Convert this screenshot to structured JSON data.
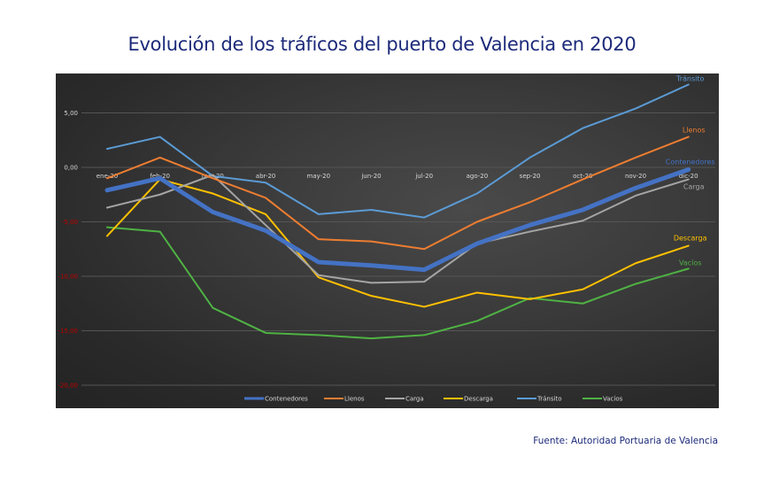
{
  "chart_data": {
    "type": "line",
    "title": "Evolución de los tráficos del puerto de Valencia en 2020",
    "source": "Fuente: Autoridad Portuaria de Valencia",
    "xlabel": "",
    "ylabel": "",
    "categories": [
      "ene-20",
      "feb-20",
      "mar-20",
      "abr-20",
      "may-20",
      "jun-20",
      "jul-20",
      "ago-20",
      "sep-20",
      "oct-20",
      "nov-20",
      "dic-20"
    ],
    "ylim": [
      -22,
      9
    ],
    "yticks": [
      {
        "value": 5,
        "label": "5,00"
      },
      {
        "value": 0,
        "label": "0,00"
      },
      {
        "value": -5,
        "label": "-5,00"
      },
      {
        "value": -10,
        "label": "-10,00"
      },
      {
        "value": -15,
        "label": "-15,00"
      },
      {
        "value": -20,
        "label": "-20,00"
      }
    ],
    "grid": true,
    "legend_position": "bottom",
    "positive_tick_color": "#d9d9d9",
    "negative_tick_color": "#c00000",
    "series": [
      {
        "name": "Contenedores",
        "color": "#4472c4",
        "width": 5,
        "end_label": "Contenedores",
        "values": [
          -2.1,
          -1.0,
          -4.1,
          -5.8,
          -8.7,
          -9.0,
          -9.4,
          -7.0,
          -5.3,
          -3.9,
          -1.9,
          -0.2
        ]
      },
      {
        "name": "Llenos",
        "color": "#ed7d31",
        "width": 2,
        "end_label": "Llenos",
        "values": [
          -1.0,
          0.9,
          -1.0,
          -2.8,
          -6.6,
          -6.8,
          -7.5,
          -5.0,
          -3.2,
          -1.1,
          0.9,
          2.8
        ]
      },
      {
        "name": "Carga",
        "color": "#a5a5a5",
        "width": 2,
        "end_label": "Carga",
        "values": [
          -3.7,
          -2.5,
          -0.7,
          -5.3,
          -9.9,
          -10.6,
          -10.5,
          -7.0,
          -5.9,
          -4.9,
          -2.6,
          -1.1
        ]
      },
      {
        "name": "Descarga",
        "color": "#ffc000",
        "width": 2,
        "end_label": "Descarga",
        "values": [
          -6.3,
          -1.1,
          -2.4,
          -4.3,
          -10.1,
          -11.8,
          -12.8,
          -11.5,
          -12.1,
          -11.2,
          -8.8,
          -7.2
        ]
      },
      {
        "name": "Tránsito",
        "color": "#5b9bd5",
        "width": 2,
        "end_label": "Tránsito",
        "values": [
          1.7,
          2.8,
          -0.8,
          -1.4,
          -4.3,
          -3.9,
          -4.6,
          -2.4,
          0.9,
          3.6,
          5.4,
          7.6
        ]
      },
      {
        "name": "Vacíos",
        "color": "#4fb244",
        "width": 2,
        "end_label": "Vacíos",
        "values": [
          -5.5,
          -5.9,
          -12.9,
          -15.2,
          -15.4,
          -15.7,
          -15.4,
          -14.1,
          -12.0,
          -12.5,
          -10.7,
          -9.3
        ]
      }
    ]
  }
}
